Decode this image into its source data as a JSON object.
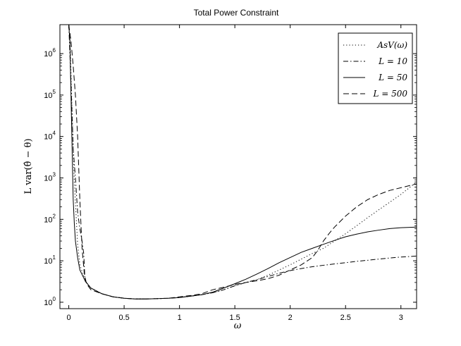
{
  "chart_data": {
    "type": "line",
    "title": "Total Power Constraint",
    "xlabel": "ω",
    "ylabel": "L var(θ̂ − θ)",
    "xlim": [
      -0.08,
      3.1416
    ],
    "ylim": [
      0.7,
      5000000
    ],
    "yscale": "log",
    "x_ticks": [
      "0",
      "0.5",
      "1",
      "1.5",
      "2",
      "2.5",
      "3"
    ],
    "y_ticks": [
      "10^0",
      "10^1",
      "10^2",
      "10^3",
      "10^4",
      "10^5",
      "10^6"
    ],
    "legend_position": "top-right",
    "grid": false,
    "series": [
      {
        "name": "AsV(ω)",
        "dash": "dotted",
        "x": [
          0.01,
          0.03,
          0.05,
          0.08,
          0.1,
          0.15,
          0.2,
          0.3,
          0.4,
          0.5,
          0.6,
          0.7,
          0.8,
          0.9,
          1.0,
          1.1,
          1.2,
          1.3,
          1.4,
          1.5,
          1.6,
          1.7,
          1.8,
          1.9,
          2.0,
          2.1,
          2.2,
          2.3,
          2.4,
          2.5,
          2.6,
          2.7,
          2.8,
          2.9,
          3.0,
          3.1416
        ],
        "y": [
          3000000,
          40000,
          800,
          25,
          8,
          3.2,
          2.2,
          1.6,
          1.35,
          1.25,
          1.2,
          1.2,
          1.22,
          1.25,
          1.3,
          1.4,
          1.52,
          1.7,
          2.0,
          2.5,
          3.0,
          3.5,
          4.5,
          6,
          8,
          11,
          15,
          20,
          30,
          45,
          70,
          110,
          170,
          260,
          400,
          800
        ]
      },
      {
        "name": "L = 10",
        "dash": "dashdot",
        "x": [
          0.0,
          0.02,
          0.04,
          0.06,
          0.08,
          0.1,
          0.12,
          0.135,
          0.14,
          0.145,
          0.15,
          0.2,
          0.3,
          0.4,
          0.5,
          0.6,
          0.7,
          0.8,
          0.9,
          1.0,
          1.1,
          1.2,
          1.3,
          1.4,
          1.5,
          1.6,
          1.7,
          1.8,
          1.9,
          2.0,
          2.1,
          2.2,
          2.3,
          2.4,
          2.5,
          2.6,
          2.7,
          2.8,
          2.9,
          3.0,
          3.1416
        ],
        "y": [
          5000000,
          200000,
          5000,
          1000,
          150,
          60,
          30,
          15,
          8,
          4,
          3.2,
          2.2,
          1.6,
          1.35,
          1.25,
          1.2,
          1.2,
          1.22,
          1.25,
          1.3,
          1.4,
          1.52,
          1.7,
          2.0,
          2.5,
          3.0,
          3.5,
          4.2,
          5.0,
          5.8,
          6.5,
          7.2,
          7.8,
          8.4,
          9.0,
          9.7,
          10.3,
          11.0,
          11.7,
          12.3,
          13.0
        ]
      },
      {
        "name": "L = 50",
        "dash": "solid",
        "x": [
          0.0,
          0.01,
          0.02,
          0.03,
          0.04,
          0.05,
          0.06,
          0.08,
          0.1,
          0.15,
          0.2,
          0.3,
          0.4,
          0.5,
          0.6,
          0.7,
          0.8,
          0.9,
          1.0,
          1.1,
          1.2,
          1.3,
          1.4,
          1.5,
          1.6,
          1.7,
          1.8,
          1.9,
          2.0,
          2.1,
          2.2,
          2.3,
          2.4,
          2.5,
          2.6,
          2.7,
          2.8,
          2.9,
          3.0,
          3.1416
        ],
        "y": [
          5000000,
          2000000,
          100000,
          5000,
          300,
          80,
          30,
          12,
          6,
          3.2,
          2.2,
          1.6,
          1.35,
          1.25,
          1.2,
          1.2,
          1.22,
          1.25,
          1.3,
          1.4,
          1.52,
          1.75,
          2.2,
          2.8,
          3.6,
          4.8,
          6.5,
          9,
          12,
          16,
          20,
          25,
          31,
          38,
          44,
          50,
          55,
          60,
          63,
          65
        ]
      },
      {
        "name": "L = 500",
        "dash": "dashed",
        "x": [
          0.0,
          0.02,
          0.04,
          0.06,
          0.08,
          0.1,
          0.12,
          0.14,
          0.16,
          0.2,
          0.3,
          0.4,
          0.5,
          0.6,
          0.7,
          0.8,
          0.9,
          1.0,
          1.1,
          1.2,
          1.3,
          1.4,
          1.5,
          1.6,
          1.7,
          1.8,
          1.9,
          2.0,
          2.1,
          2.2,
          2.25,
          2.3,
          2.35,
          2.4,
          2.5,
          2.6,
          2.7,
          2.8,
          2.9,
          3.0,
          3.1416
        ],
        "y": [
          5000000,
          2000000,
          500000,
          100000,
          10000,
          300,
          20,
          5,
          2.8,
          2.0,
          1.6,
          1.35,
          1.25,
          1.2,
          1.2,
          1.22,
          1.25,
          1.35,
          1.45,
          1.6,
          2.0,
          2.3,
          2.7,
          3.0,
          3.3,
          3.7,
          4.5,
          6,
          8,
          12,
          18,
          30,
          45,
          65,
          120,
          200,
          300,
          400,
          500,
          580,
          720
        ]
      }
    ]
  }
}
